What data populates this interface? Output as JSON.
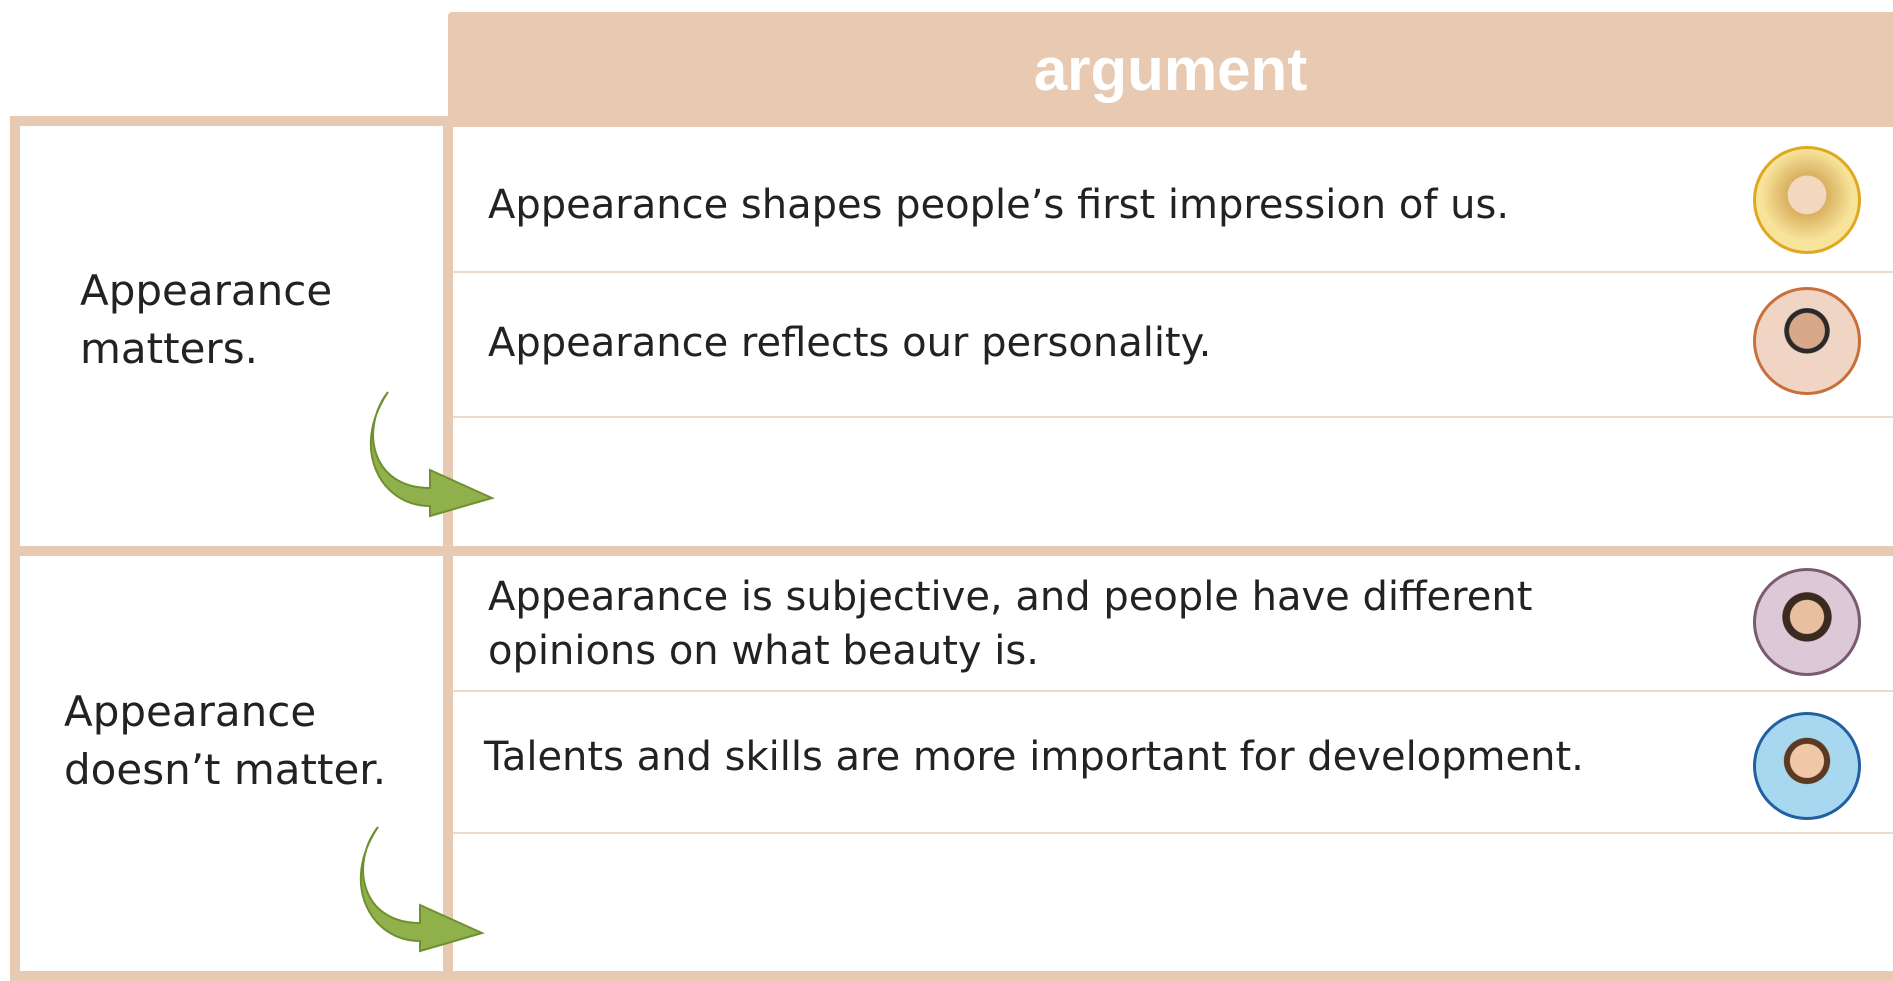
{
  "header": {
    "title": "argument"
  },
  "groups": [
    {
      "label": "Appearance matters.",
      "arguments": [
        "Appearance shapes people’s first impression of us.",
        "Appearance reflects our personality."
      ]
    },
    {
      "label": "Appearance doesn’t matter.",
      "arguments": [
        "Appearance is subjective, and people have different opinions on what beauty is.",
        "Talents and skills are more important for development."
      ]
    }
  ]
}
